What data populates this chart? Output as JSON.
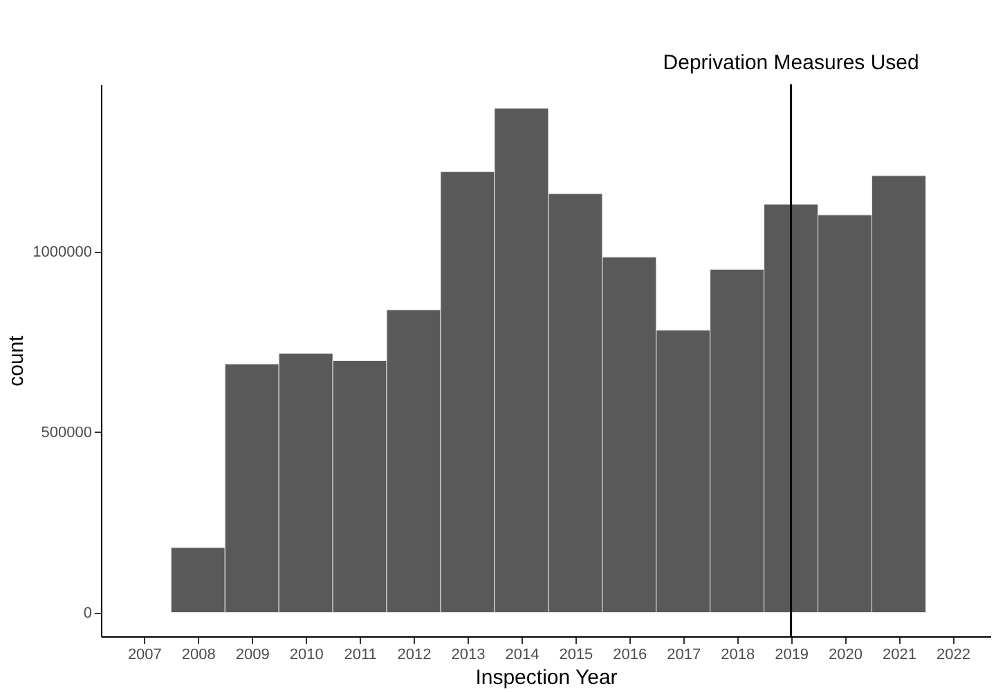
{
  "chart_data": {
    "type": "histogram",
    "xlabel": "Inspection Year",
    "ylabel": "count",
    "bins": [
      2007.5,
      2008.5,
      2009.5,
      2010.5,
      2011.5,
      2012.5,
      2013.5,
      2014.5,
      2015.5,
      2016.5,
      2017.5,
      2018.5,
      2019.5,
      2020.5,
      2021.5
    ],
    "values": [
      180000,
      689000,
      718000,
      698000,
      839000,
      1222000,
      1398000,
      1161000,
      985000,
      783000,
      951000,
      1132000,
      1102000,
      1211000
    ],
    "color": "#595959",
    "xlim": [
      2006.2,
      2022.7
    ],
    "xticks": [
      2007,
      2008,
      2009,
      2010,
      2011,
      2012,
      2013,
      2014,
      2015,
      2016,
      2017,
      2018,
      2019,
      2020,
      2021,
      2022
    ],
    "ylim": [
      -66000,
      1464000
    ],
    "yticks": [
      0,
      500000,
      1000000
    ],
    "ref_lines": [
      {
        "axis": "x",
        "value": 2019,
        "label": "Deprivation Measures Used",
        "color": "#000000"
      }
    ],
    "grid": false
  }
}
